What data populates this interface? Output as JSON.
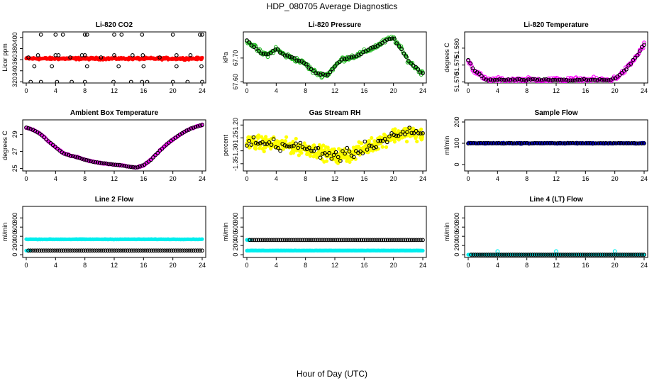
{
  "figure": {
    "title": "HDP_080705  Average Diagnostics",
    "xlabel": "Hour of Day (UTC)"
  },
  "chart_data": [
    {
      "type": "scatter",
      "title": "Li-820 CO2",
      "ylabel": "Licor ppm",
      "xlim": [
        0,
        24
      ],
      "ylim": [
        318,
        410
      ],
      "xticks": [
        "0",
        "4",
        "8",
        "12",
        "16",
        "20",
        "24"
      ],
      "yticks": [
        "320",
        "340",
        "360",
        "380",
        "400"
      ],
      "series": [
        {
          "name": "dense",
          "color": "#ff0000",
          "style": "filled",
          "pattern": "flat",
          "x_range": [
            0,
            24
          ],
          "count": 290,
          "base": 362,
          "noise": 1.5
        },
        {
          "name": "outliers",
          "color": "#000000",
          "style": "open",
          "points": [
            [
              2,
              405
            ],
            [
              4,
              405
            ],
            [
              5,
              405
            ],
            [
              8,
              405
            ],
            [
              8.3,
              405
            ],
            [
              12,
              405
            ],
            [
              13,
              405
            ],
            [
              15.8,
              405
            ],
            [
              20,
              405
            ],
            [
              23.7,
              405
            ],
            [
              24,
              405
            ],
            [
              0.6,
              320
            ],
            [
              2,
              320
            ],
            [
              4.2,
              320
            ],
            [
              6.2,
              320
            ],
            [
              8,
              320
            ],
            [
              11.9,
              320
            ],
            [
              14.3,
              320
            ],
            [
              15.8,
              320
            ],
            [
              16.5,
              320
            ],
            [
              20,
              320
            ],
            [
              22,
              320
            ],
            [
              24,
              320
            ],
            [
              1.6,
              368
            ],
            [
              4,
              368
            ],
            [
              4.4,
              368
            ],
            [
              7.6,
              368
            ],
            [
              8,
              368
            ],
            [
              12,
              368
            ],
            [
              14.5,
              368
            ],
            [
              15.9,
              368
            ],
            [
              20.5,
              368
            ],
            [
              22.4,
              368
            ],
            [
              1.1,
              348
            ],
            [
              3.5,
              348
            ],
            [
              8.3,
              348
            ],
            [
              12.6,
              348
            ],
            [
              16,
              348
            ],
            [
              20.5,
              348
            ],
            [
              23.9,
              348
            ],
            [
              0.3,
              364
            ],
            [
              6,
              364
            ],
            [
              10.2,
              364
            ],
            [
              18.2,
              364
            ]
          ]
        }
      ]
    },
    {
      "type": "scatter",
      "title": "Li-820 Pressure",
      "ylabel": "kPa",
      "xlim": [
        0,
        24
      ],
      "ylim": [
        67.595,
        67.81
      ],
      "xticks": [
        "0",
        "4",
        "8",
        "12",
        "16",
        "20",
        "24"
      ],
      "yticks": [
        "67.60",
        "67.70"
      ],
      "series": [
        {
          "name": "dense",
          "color": "#22bb22",
          "style": "open",
          "pattern": "pressure",
          "x_range": [
            0,
            24
          ],
          "count": 220,
          "noise": 0.008
        },
        {
          "name": "avg",
          "color": "#000000",
          "style": "open",
          "pattern": "pressure",
          "x_range": [
            0,
            24
          ],
          "count": 75,
          "noise": 0.003
        }
      ]
    },
    {
      "type": "scatter",
      "title": "Li-820 Temperature",
      "ylabel": "degrees C",
      "xlim": [
        0,
        24
      ],
      "ylim": [
        51.5697,
        51.5848
      ],
      "xticks": [
        "0",
        "4",
        "8",
        "12",
        "16",
        "20",
        "24"
      ],
      "yticks": [
        "51.570",
        "51.575",
        "51.580"
      ],
      "series": [
        {
          "name": "dense",
          "color": "#ff00ff",
          "style": "open",
          "pattern": "litemp",
          "x_range": [
            0,
            24
          ],
          "count": 200,
          "noise": 0.0006
        },
        {
          "name": "avg",
          "color": "#000000",
          "style": "open",
          "pattern": "litemp",
          "x_range": [
            0,
            24
          ],
          "count": 80,
          "noise": 0.0002
        }
      ]
    },
    {
      "type": "scatter",
      "title": "Ambient Box Temperature",
      "ylabel": "degrees C",
      "xlim": [
        0,
        24
      ],
      "ylim": [
        24.7,
        30.7
      ],
      "xticks": [
        "0",
        "4",
        "8",
        "12",
        "16",
        "20",
        "24"
      ],
      "yticks": [
        "25",
        "27",
        "29"
      ],
      "series": [
        {
          "name": "dense",
          "color": "#ff00ff",
          "style": "open",
          "pattern": "ambient",
          "x_range": [
            0,
            24
          ],
          "count": 180,
          "noise": 0.05
        },
        {
          "name": "avg",
          "color": "#000000",
          "style": "open",
          "pattern": "ambient",
          "x_range": [
            0,
            24
          ],
          "count": 80,
          "noise": 0.02
        }
      ]
    },
    {
      "type": "scatter",
      "title": "Gas Stream RH",
      "ylabel": "percent",
      "xlim": [
        0,
        24
      ],
      "ylim": [
        -1.378,
        -1.18
      ],
      "xticks": [
        "0",
        "4",
        "8",
        "12",
        "16",
        "20",
        "24"
      ],
      "yticks": [
        "-1.35",
        "-1.30",
        "-1.25",
        "-1.20"
      ],
      "series": [
        {
          "name": "dense",
          "color": "#ffff00",
          "style": "filled",
          "pattern": "rh",
          "x_range": [
            0,
            24
          ],
          "count": 420,
          "noise": 0.022
        },
        {
          "name": "avg",
          "color": "#000000",
          "style": "open",
          "pattern": "rh",
          "x_range": [
            0,
            24
          ],
          "count": 80,
          "noise": 0.018
        }
      ]
    },
    {
      "type": "scatter",
      "title": "Sample Flow",
      "ylabel": "ml/min",
      "xlim": [
        0,
        24
      ],
      "ylim": [
        -30,
        210
      ],
      "xticks": [
        "0",
        "4",
        "8",
        "12",
        "16",
        "20",
        "24"
      ],
      "yticks": [
        "0",
        "100",
        "200"
      ],
      "series": [
        {
          "name": "dense",
          "color": "#0000cc",
          "style": "filled",
          "pattern": "flat",
          "x_range": [
            0,
            24
          ],
          "count": 280,
          "base": 100,
          "noise": 2
        },
        {
          "name": "avg",
          "color": "#000000",
          "style": "open",
          "pattern": "flat",
          "x_range": [
            0,
            24
          ],
          "count": 70,
          "base": 100,
          "noise": 1
        }
      ]
    },
    {
      "type": "scatter",
      "title": "Line 2 Flow",
      "ylabel": "ml/min",
      "xlim": [
        0,
        24
      ],
      "ylim": [
        -60,
        1050
      ],
      "xticks": [
        "0",
        "4",
        "8",
        "12",
        "16",
        "20",
        "24"
      ],
      "yticks": [
        "0",
        "200",
        "400",
        "600",
        "800"
      ],
      "series": [
        {
          "name": "dense-high",
          "color": "#00eeee",
          "style": "filled",
          "pattern": "flat",
          "x_range": [
            0,
            24
          ],
          "count": 240,
          "base": 335,
          "noise": 3
        },
        {
          "name": "dense-low",
          "color": "#00eeee",
          "style": "filled",
          "pattern": "flat",
          "x_range": [
            0,
            0.6
          ],
          "count": 6,
          "base": 90,
          "noise": 2
        },
        {
          "name": "avg",
          "color": "#000000",
          "style": "open",
          "pattern": "flat",
          "x_range": [
            0.3,
            24
          ],
          "count": 80,
          "base": 90,
          "noise": 0
        }
      ]
    },
    {
      "type": "scatter",
      "title": "Line 3 Flow",
      "ylabel": "ml/min",
      "xlim": [
        0,
        24
      ],
      "ylim": [
        -60,
        1050
      ],
      "xticks": [
        "0",
        "4",
        "8",
        "12",
        "16",
        "20",
        "24"
      ],
      "yticks": [
        "0",
        "200",
        "400",
        "600",
        "800"
      ],
      "series": [
        {
          "name": "dense-low",
          "color": "#00eeee",
          "style": "filled",
          "pattern": "flat",
          "x_range": [
            0,
            24
          ],
          "count": 260,
          "base": 90,
          "noise": 2
        },
        {
          "name": "dense-high",
          "color": "#00eeee",
          "style": "filled",
          "pattern": "flat",
          "x_range": [
            0,
            0.5
          ],
          "count": 5,
          "base": 320,
          "noise": 2
        },
        {
          "name": "avg",
          "color": "#000000",
          "style": "open",
          "pattern": "flat",
          "x_range": [
            0.4,
            24
          ],
          "count": 80,
          "base": 320,
          "noise": 0
        }
      ]
    },
    {
      "type": "scatter",
      "title": "Line 4 (LT) Flow",
      "ylabel": "ml/min",
      "xlim": [
        0,
        24
      ],
      "ylim": [
        -60,
        1050
      ],
      "xticks": [
        "0",
        "4",
        "8",
        "12",
        "16",
        "20",
        "24"
      ],
      "yticks": [
        "0",
        "200",
        "400",
        "600",
        "800"
      ],
      "series": [
        {
          "name": "dense",
          "color": "#00eeee",
          "style": "filled",
          "pattern": "flat",
          "x_range": [
            0,
            24
          ],
          "count": 200,
          "base": 0,
          "noise": 1
        },
        {
          "name": "spikes",
          "color": "#00eeee",
          "style": "open",
          "points": [
            [
              4,
              75
            ],
            [
              12,
              75
            ],
            [
              20,
              75
            ]
          ]
        },
        {
          "name": "avg",
          "color": "#000000",
          "style": "open",
          "pattern": "flat",
          "x_range": [
            0.4,
            24
          ],
          "count": 80,
          "base": 0,
          "noise": 0
        }
      ]
    }
  ]
}
